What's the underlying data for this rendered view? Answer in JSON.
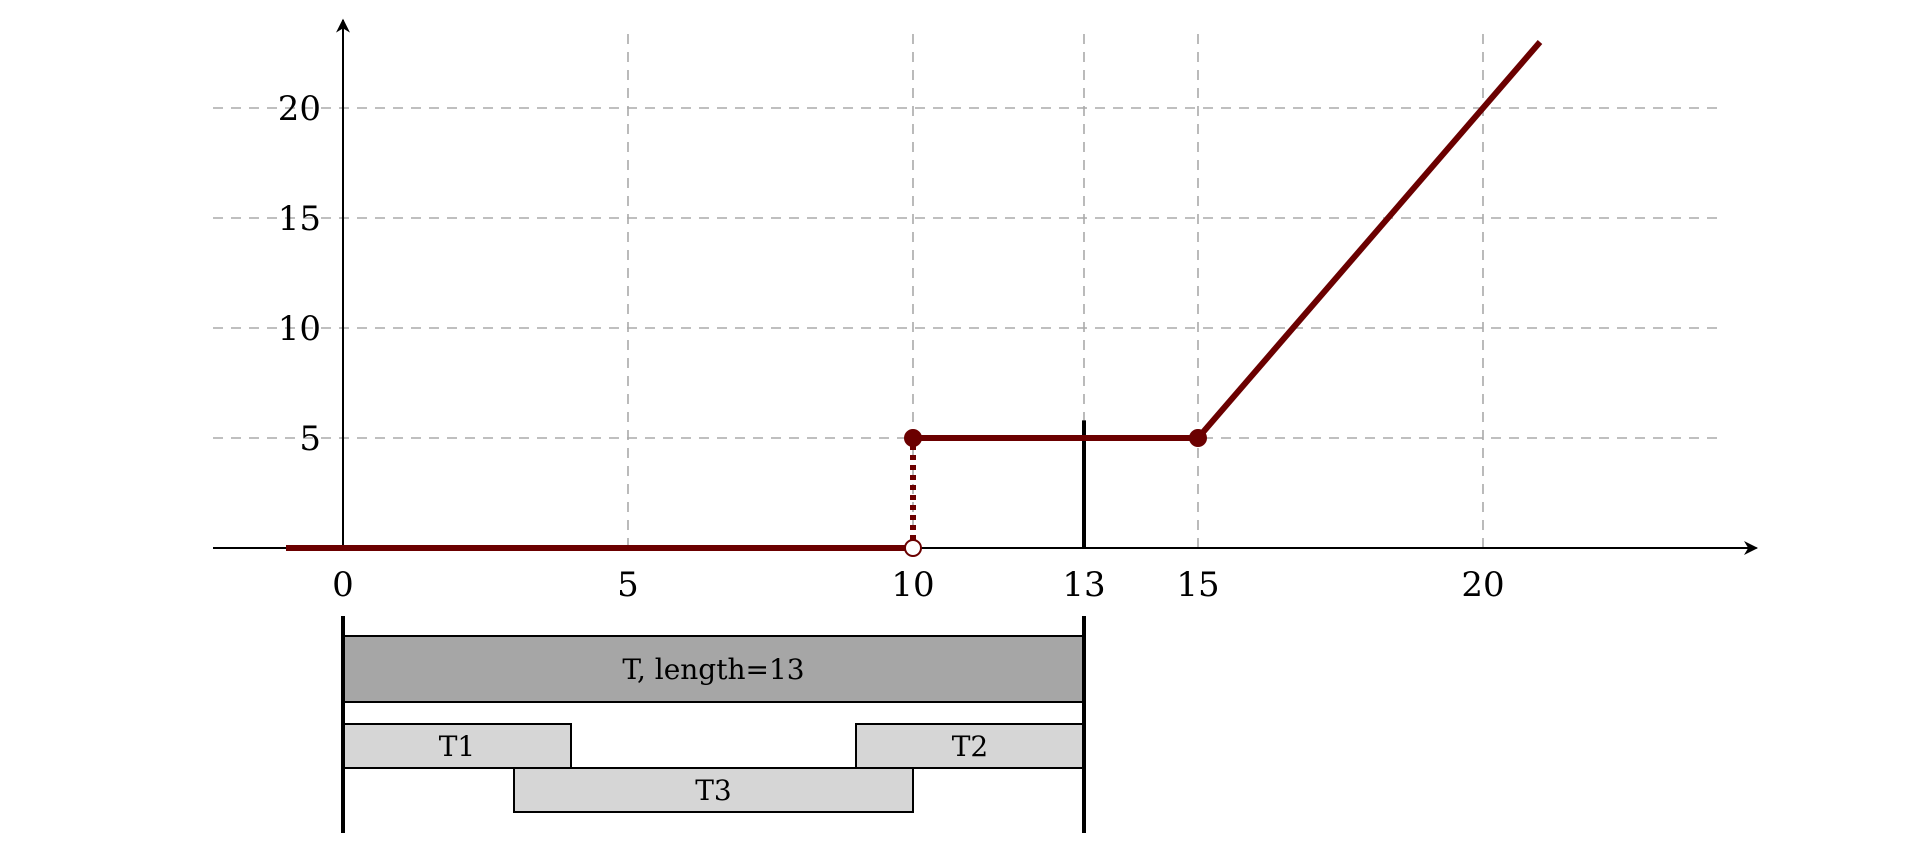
{
  "chart_data": {
    "type": "line",
    "title": "",
    "xlabel": "",
    "ylabel": "",
    "xlim": [
      -2,
      24.8
    ],
    "ylim": [
      0,
      24
    ],
    "xticks": [
      0,
      5,
      10,
      13,
      15,
      20
    ],
    "yticks": [
      5,
      10,
      15,
      20
    ],
    "grid": true,
    "grid_x": [
      5,
      10,
      13,
      15,
      20
    ],
    "grid_y": [
      5,
      10,
      15,
      20
    ],
    "series": [
      {
        "segments": [
          [
            [
              -1,
              0
            ],
            [
              10,
              0
            ]
          ],
          [
            [
              10,
              5
            ],
            [
              15,
              5
            ]
          ],
          [
            [
              15,
              5
            ],
            [
              21,
              23
            ]
          ]
        ],
        "jump": {
          "x": 10,
          "from": 0,
          "to": 5,
          "style": "dotted"
        },
        "points": [
          {
            "x": 10,
            "y": 0,
            "filled": false
          },
          {
            "x": 10,
            "y": 5,
            "filled": true
          },
          {
            "x": 15,
            "y": 5,
            "filled": true
          }
        ],
        "color": "#6b0000"
      }
    ],
    "marker_line": {
      "x": 13,
      "ymax": 5.8
    },
    "intervals": [
      {
        "label": "T, length=13",
        "start": 0,
        "end": 13,
        "row": 0,
        "fill": "#a6a6a6"
      },
      {
        "label": "T1",
        "start": 0,
        "end": 4,
        "row": 1,
        "fill": "#d6d6d6"
      },
      {
        "label": "T2",
        "start": 9,
        "end": 13,
        "row": 1,
        "fill": "#d6d6d6"
      },
      {
        "label": "T3",
        "start": 3,
        "end": 10,
        "row": 2,
        "fill": "#d6d6d6"
      }
    ],
    "interval_bounds": [
      0,
      13
    ],
    "colors": {
      "series": "#6b0000",
      "grid": "#aaaaaa",
      "axis": "#000000"
    }
  }
}
